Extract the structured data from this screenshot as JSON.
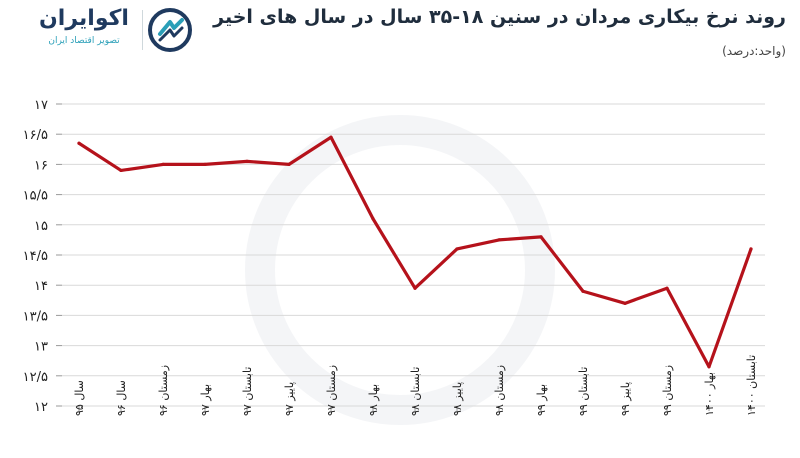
{
  "header": {
    "title": "روند نرخ بیکاری مردان در سنین ۱۸-۳۵ سال در سال های اخیر",
    "unit": "(واحد:درصد)"
  },
  "logo": {
    "name": "اکوایران",
    "tagline": "تصویر اقتصاد ایران"
  },
  "colors": {
    "line": "#b5121b",
    "title": "#1f2d3d",
    "logo": "#1f3a5f",
    "accent": "#2a9fb8"
  },
  "chart_data": {
    "type": "line",
    "title": "روند نرخ بیکاری مردان در سنین ۱۸-۳۵ سال در سال های اخیر",
    "unit_label": "(واحد:درصد)",
    "categories": [
      "سال ۹۵",
      "سال ۹۶",
      "زمستان ۹۶",
      "بهار ۹۷",
      "تابستان ۹۷",
      "پاییز ۹۷",
      "زمستان ۹۷",
      "بهار ۹۸",
      "تابستان ۹۸",
      "پاییز ۹۸",
      "زمستان ۹۸",
      "بهار ۹۹",
      "تابستان ۹۹",
      "پاییز ۹۹",
      "زمستان ۹۹",
      "بهار ۱۴۰۰",
      "تابستان ۱۴۰۰"
    ],
    "series": [
      {
        "values": [
          16.35,
          15.9,
          16.0,
          16.0,
          16.05,
          16.0,
          16.45,
          15.1,
          13.95,
          14.6,
          14.75,
          14.8,
          13.9,
          13.7,
          13.95,
          12.65,
          14.6
        ]
      }
    ],
    "ylim": [
      12,
      17
    ],
    "yticks": [
      {
        "value": 12,
        "label": "۱۲"
      },
      {
        "value": 12.5,
        "label": "۱۲/۵"
      },
      {
        "value": 13,
        "label": "۱۳"
      },
      {
        "value": 13.5,
        "label": "۱۳/۵"
      },
      {
        "value": 14,
        "label": "۱۴"
      },
      {
        "value": 14.5,
        "label": "۱۴/۵"
      },
      {
        "value": 15,
        "label": "۱۵"
      },
      {
        "value": 15.5,
        "label": "۱۵/۵"
      },
      {
        "value": 16,
        "label": "۱۶"
      },
      {
        "value": 16.5,
        "label": "۱۶/۵"
      },
      {
        "value": 17,
        "label": "۱۷"
      }
    ],
    "grid": true,
    "legend": "none"
  }
}
